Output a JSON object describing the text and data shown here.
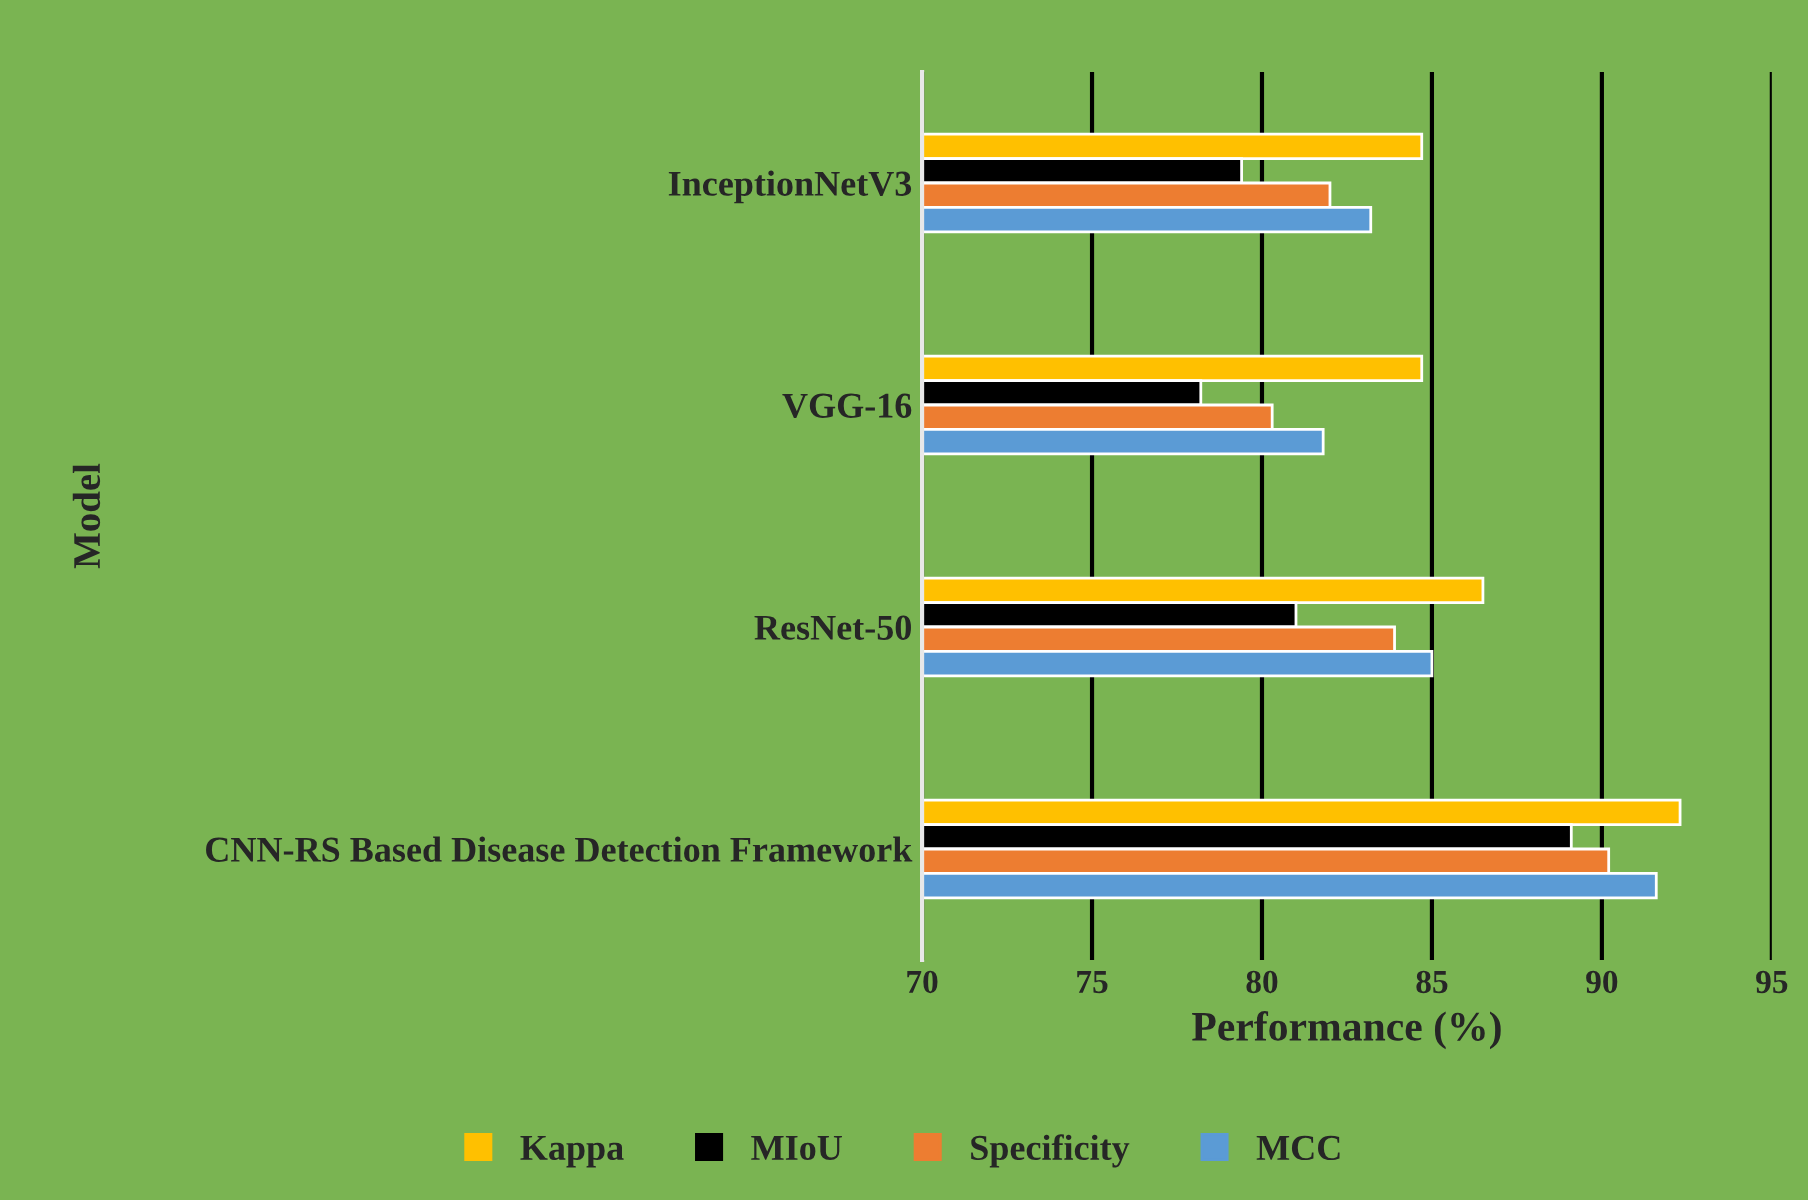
{
  "chart_data": {
    "type": "bar",
    "orientation": "horizontal",
    "xlabel": "Performance (%)",
    "ylabel": "Model",
    "categories": [
      "InceptionNetV3",
      "VGG-16",
      "ResNet-50",
      "CNN-RS Based Disease Detection Framework"
    ],
    "series": [
      {
        "name": "Kappa",
        "color": "#ffc000",
        "values": [
          84.7,
          84.7,
          86.5,
          92.3
        ]
      },
      {
        "name": "MIoU",
        "color": "#000000",
        "values": [
          79.4,
          78.2,
          81.0,
          89.1
        ]
      },
      {
        "name": "Specificity",
        "color": "#ed7d31",
        "values": [
          82.0,
          80.3,
          83.9,
          90.2
        ]
      },
      {
        "name": "MCC",
        "color": "#5b9bd5",
        "values": [
          83.2,
          81.8,
          85.0,
          91.6
        ]
      }
    ],
    "xlim": [
      70,
      95
    ],
    "xticks": [
      70,
      75,
      80,
      85,
      90,
      95
    ],
    "grid": "x",
    "legend": "bottom"
  }
}
